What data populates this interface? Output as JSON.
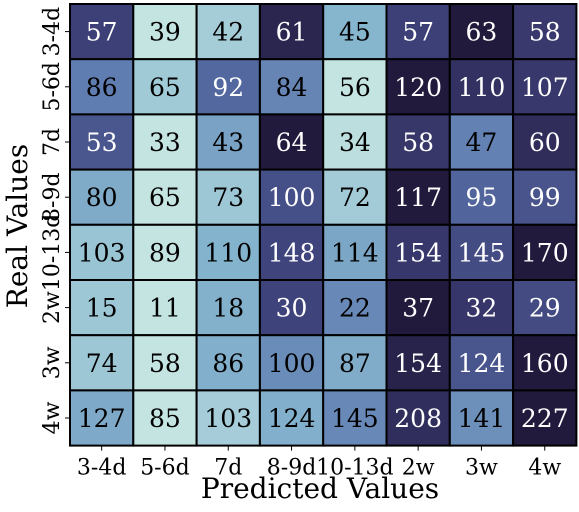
{
  "chart_data": {
    "type": "heatmap",
    "xlabel": "Predicted Values",
    "ylabel": "Real Values",
    "x_categories": [
      "3-4d",
      "5-6d",
      "7d",
      "8-9d",
      "10-13d",
      "2w",
      "3w",
      "4w"
    ],
    "y_categories": [
      "3-4d",
      "5-6d",
      "7d",
      "8-9d",
      "10-13d",
      "2w",
      "3w",
      "4w"
    ],
    "values": [
      [
        57,
        39,
        42,
        61,
        45,
        57,
        63,
        58
      ],
      [
        86,
        65,
        92,
        84,
        56,
        120,
        110,
        107
      ],
      [
        53,
        33,
        43,
        64,
        34,
        58,
        47,
        60
      ],
      [
        80,
        65,
        73,
        100,
        72,
        117,
        95,
        99
      ],
      [
        103,
        89,
        110,
        148,
        114,
        154,
        145,
        170
      ],
      [
        15,
        11,
        18,
        30,
        22,
        37,
        32,
        29
      ],
      [
        74,
        58,
        86,
        100,
        87,
        154,
        124,
        160
      ],
      [
        127,
        85,
        103,
        124,
        145,
        208,
        141,
        227
      ]
    ],
    "colormap": [
      "#c4e4e2",
      "#86b5ce",
      "#5b75ad",
      "#3d3f77",
      "#221a3d"
    ],
    "normalization": "per-row",
    "grid": "black cell borders",
    "legend": "none"
  }
}
